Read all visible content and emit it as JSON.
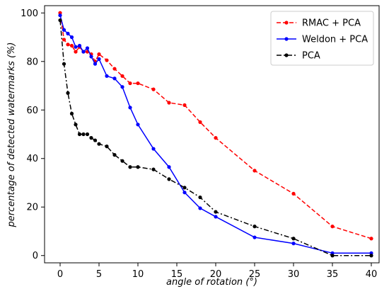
{
  "chart_data": {
    "type": "line",
    "xlabel": "angle of rotation (°)",
    "ylabel": "percentage of detected watermarks (%)",
    "xlim": [
      -2,
      41
    ],
    "ylim": [
      -3,
      103
    ],
    "xticks": [
      0,
      5,
      10,
      15,
      20,
      25,
      30,
      35,
      40
    ],
    "yticks": [
      0,
      20,
      40,
      60,
      80,
      100
    ],
    "grid": false,
    "legend_position": "top-right",
    "series": [
      {
        "name": "RMAC + PCA",
        "color": "#ff0000",
        "linestyle": "dashed",
        "x": [
          0,
          0.5,
          1,
          1.5,
          2,
          2.5,
          3,
          3.5,
          4,
          4.5,
          5,
          6,
          7,
          8,
          9,
          10,
          12,
          14,
          16,
          18,
          20,
          25,
          30,
          35,
          40
        ],
        "values": [
          100,
          89,
          87,
          86.5,
          84,
          86,
          84,
          84,
          83,
          80,
          83,
          80.5,
          77,
          74,
          71,
          71,
          68.5,
          63,
          62,
          55,
          48.5,
          35,
          25.5,
          12,
          7
        ]
      },
      {
        "name": "Weldon + PCA",
        "color": "#0000ff",
        "linestyle": "solid",
        "x": [
          0,
          0.5,
          1,
          1.5,
          2,
          2.5,
          3,
          3.5,
          4,
          4.5,
          5,
          6,
          7,
          8,
          9,
          10,
          12,
          14,
          16,
          18,
          20,
          25,
          30,
          35,
          40
        ],
        "values": [
          99,
          93,
          91.5,
          90,
          86,
          86.5,
          84,
          85.5,
          82,
          79,
          81,
          74,
          73,
          69.5,
          61,
          54,
          44,
          36.5,
          26,
          19.5,
          16,
          7.5,
          5,
          1,
          1
        ]
      },
      {
        "name": "PCA",
        "color": "#000000",
        "linestyle": "dashdot",
        "x": [
          0,
          0.5,
          1,
          1.5,
          2,
          2.5,
          3,
          3.5,
          4,
          4.5,
          5,
          6,
          7,
          8,
          9,
          10,
          12,
          14,
          16,
          18,
          20,
          25,
          30,
          35,
          40
        ],
        "values": [
          97,
          79,
          67,
          58.5,
          54,
          50,
          50,
          50,
          48.5,
          47.5,
          46,
          45,
          41.5,
          39,
          36.5,
          36.5,
          35.5,
          31.5,
          28,
          24,
          18,
          12,
          7,
          0,
          0
        ]
      }
    ]
  }
}
